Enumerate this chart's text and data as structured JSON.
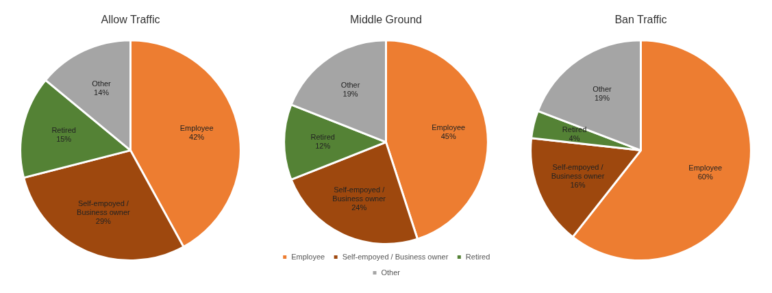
{
  "chart_data": [
    {
      "type": "pie",
      "title": "Allow Traffic",
      "categories": [
        "Employee",
        "Self-empoyed / Business owner",
        "Retired",
        "Other"
      ],
      "values": [
        42,
        29,
        15,
        14
      ],
      "colors": [
        "#ed7d31",
        "#9e480e",
        "#548235",
        "#a5a5a5"
      ],
      "value_labels": [
        "42%",
        "29%",
        "15%",
        "14%"
      ]
    },
    {
      "type": "pie",
      "title": "Middle Ground",
      "categories": [
        "Employee",
        "Self-empoyed / Business owner",
        "Retired",
        "Other"
      ],
      "values": [
        45,
        24,
        12,
        19
      ],
      "colors": [
        "#ed7d31",
        "#9e480e",
        "#548235",
        "#a5a5a5"
      ],
      "value_labels": [
        "45%",
        "24%",
        "12%",
        "19%"
      ],
      "legend": "bottom"
    },
    {
      "type": "pie",
      "title": "Ban Traffic",
      "categories": [
        "Employee",
        "Self-empoyed / Business owner",
        "Retired",
        "Other"
      ],
      "values": [
        60,
        16,
        4,
        19
      ],
      "colors": [
        "#ed7d31",
        "#9e480e",
        "#548235",
        "#a5a5a5"
      ],
      "value_labels": [
        "60%",
        "16%",
        "4%",
        "19%"
      ]
    }
  ]
}
